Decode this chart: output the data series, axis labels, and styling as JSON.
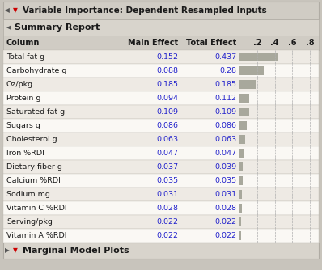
{
  "title": "Variable Importance: Dependent Resampled Inputs",
  "section": "Summary Report",
  "footer": "Marginal Model Plots",
  "rows": [
    {
      "name": "Total fat g",
      "main": "0.152",
      "total": "0.437"
    },
    {
      "name": "Carbohydrate g",
      "main": "0.088",
      "total": "0.28"
    },
    {
      "name": "Oz/pkg",
      "main": "0.185",
      "total": "0.185"
    },
    {
      "name": "Protein g",
      "main": "0.094",
      "total": "0.112"
    },
    {
      "name": "Saturated fat g",
      "main": "0.109",
      "total": "0.109"
    },
    {
      "name": "Sugars g",
      "main": "0.086",
      "total": "0.086"
    },
    {
      "name": "Cholesterol g",
      "main": "0.063",
      "total": "0.063"
    },
    {
      "name": "Iron %RDI",
      "main": "0.047",
      "total": "0.047"
    },
    {
      "name": "Dietary fiber g",
      "main": "0.037",
      "total": "0.039"
    },
    {
      "name": "Calcium %RDI",
      "main": "0.035",
      "total": "0.035"
    },
    {
      "name": "Sodium mg",
      "main": "0.031",
      "total": "0.031"
    },
    {
      "name": "Vitamin C %RDI",
      "main": "0.028",
      "total": "0.028"
    },
    {
      "name": "Serving/pkg",
      "main": "0.022",
      "total": "0.022"
    },
    {
      "name": "Vitamin A %RDI",
      "main": "0.022",
      "total": "0.022"
    }
  ],
  "bar_ticks": [
    0.2,
    0.4,
    0.6,
    0.8
  ],
  "bar_tick_labels": [
    ".2",
    ".4",
    ".6",
    ".8"
  ],
  "bar_max": 0.9,
  "bar_color": "#a8a89c",
  "title_bg": "#d0ccc4",
  "section_bg": "#d8d4cc",
  "header_bg": "#d0ccc4",
  "footer_bg": "#d8d4cc",
  "row_bg_even": "#eeeae4",
  "row_bg_odd": "#faf8f4",
  "border_color": "#b0aca4",
  "outer_bg": "#c8c4bc",
  "text_color": "#1a1a1a",
  "num_color": "#2222cc",
  "header_text_color": "#1a1a1a",
  "grid_color": "#b0b0b0"
}
